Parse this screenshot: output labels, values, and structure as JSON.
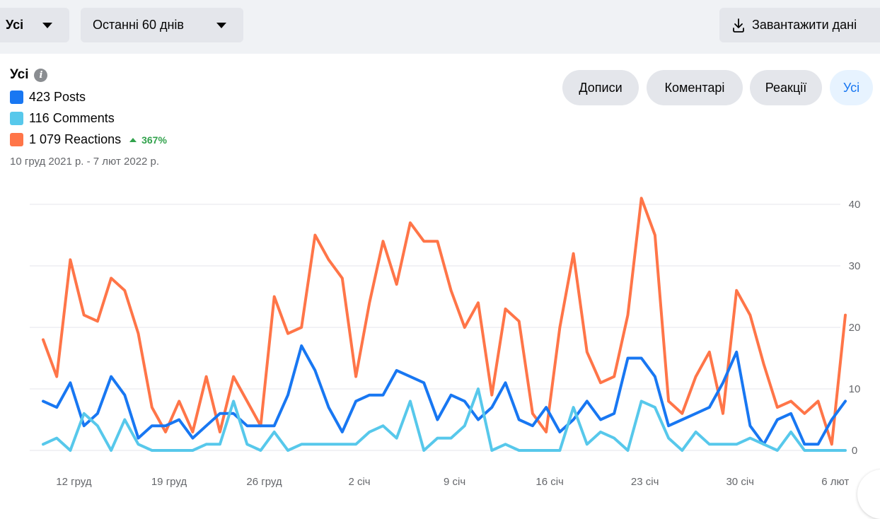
{
  "toolbar": {
    "audience_select": "Усі",
    "period_select": "Останні 60 днів",
    "download_label": "Завантажити дані",
    "download_icon": "download-icon"
  },
  "summary": {
    "title": "Усі",
    "info_icon": "info-icon",
    "posts": "423 Posts",
    "comments": "116 Comments",
    "reactions": "1 079 Reactions",
    "reactions_change": "367%",
    "date_range": "10 груд 2021 р. - 7 лют 2022 р."
  },
  "filters": [
    "Дописи",
    "Коментарі",
    "Реакції",
    "Усі"
  ],
  "active_filter": "Усі",
  "colors": {
    "posts": "#1877f2",
    "comments": "#57c8eb",
    "reactions": "#ff7548",
    "grid": "#e4e6eb",
    "increase": "#31a24c",
    "active_pill_text": "#1877f2"
  },
  "chart_data": {
    "type": "line",
    "x_ticks": [
      "12 груд",
      "19 груд",
      "26 груд",
      "2 січ",
      "9 січ",
      "16 січ",
      "23 січ",
      "30 січ",
      "6 лют"
    ],
    "x_tick_indices": [
      2,
      9,
      16,
      23,
      30,
      37,
      44,
      51,
      58
    ],
    "y_ticks": [
      0,
      10,
      20,
      30,
      40
    ],
    "ylim": [
      0,
      40
    ],
    "grid": true,
    "y_axis_position": "right",
    "series": [
      {
        "name": "Reactions",
        "color": "#ff7548",
        "values": [
          18,
          12,
          31,
          22,
          21,
          28,
          26,
          19,
          7,
          3,
          8,
          3,
          12,
          3,
          12,
          8,
          4,
          25,
          19,
          20,
          35,
          31,
          28,
          12,
          24,
          34,
          27,
          37,
          34,
          34,
          26,
          20,
          24,
          9,
          23,
          21,
          6,
          3,
          20,
          32,
          16,
          11,
          12,
          22,
          41,
          35,
          8,
          6,
          12,
          16,
          6,
          26,
          22,
          14,
          7,
          8,
          6,
          8,
          1,
          22
        ]
      },
      {
        "name": "Posts",
        "color": "#1877f2",
        "values": [
          8,
          7,
          11,
          4,
          6,
          12,
          9,
          2,
          4,
          4,
          5,
          2,
          4,
          6,
          6,
          4,
          4,
          4,
          9,
          17,
          13,
          7,
          3,
          8,
          9,
          9,
          13,
          12,
          11,
          5,
          9,
          8,
          5,
          7,
          11,
          5,
          4,
          7,
          3,
          5,
          8,
          5,
          6,
          15,
          15,
          12,
          4,
          5,
          6,
          7,
          11,
          16,
          4,
          1,
          5,
          6,
          1,
          1,
          5,
          8
        ]
      },
      {
        "name": "Comments",
        "color": "#57c8eb",
        "values": [
          1,
          2,
          0,
          6,
          4,
          0,
          5,
          1,
          0,
          0,
          0,
          0,
          1,
          1,
          8,
          1,
          0,
          3,
          0,
          1,
          1,
          1,
          1,
          1,
          3,
          4,
          2,
          8,
          0,
          2,
          2,
          4,
          10,
          0,
          1,
          0,
          0,
          0,
          0,
          7,
          1,
          3,
          2,
          0,
          8,
          7,
          2,
          0,
          3,
          1,
          1,
          1,
          2,
          1,
          0,
          3,
          0,
          0,
          0,
          0
        ]
      }
    ]
  }
}
